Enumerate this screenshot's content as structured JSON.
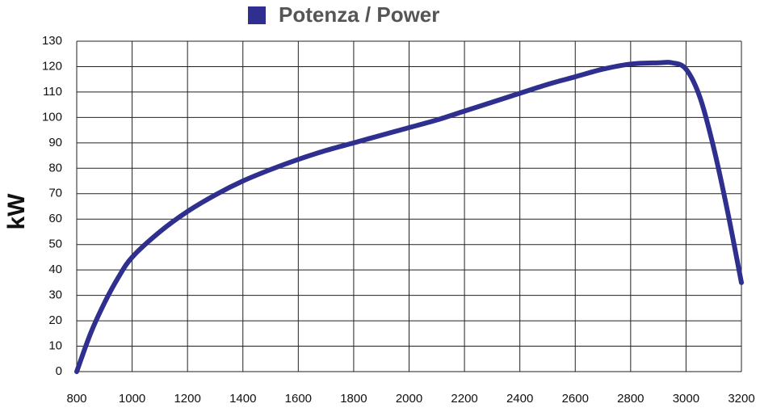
{
  "chart_data": {
    "type": "line",
    "y_label": "kW",
    "x": [
      800,
      850,
      900,
      950,
      1000,
      1100,
      1200,
      1300,
      1400,
      1500,
      1600,
      1700,
      1800,
      1900,
      2000,
      2100,
      2200,
      2300,
      2400,
      2500,
      2600,
      2700,
      2800,
      2900,
      2950,
      3000,
      3050,
      3100,
      3150,
      3200
    ],
    "series": [
      {
        "name": "Potenza / Power",
        "color": "#2e2f8e",
        "values": [
          0,
          15,
          27,
          37,
          45,
          55,
          63,
          69.5,
          75,
          79.5,
          83.5,
          87,
          90,
          93,
          96,
          99,
          102.5,
          106,
          109.5,
          113,
          116,
          119,
          121,
          121.5,
          121.5,
          119,
          108,
          88,
          63,
          35
        ]
      }
    ],
    "xlim": [
      800,
      3200
    ],
    "xticks": [
      800,
      1000,
      1200,
      1400,
      1600,
      1800,
      2000,
      2200,
      2400,
      2600,
      2800,
      3000,
      3200
    ],
    "ylim": [
      0,
      130
    ],
    "yticks": [
      0,
      10,
      20,
      30,
      40,
      50,
      60,
      70,
      80,
      90,
      100,
      110,
      120,
      130
    ],
    "grid": true
  }
}
